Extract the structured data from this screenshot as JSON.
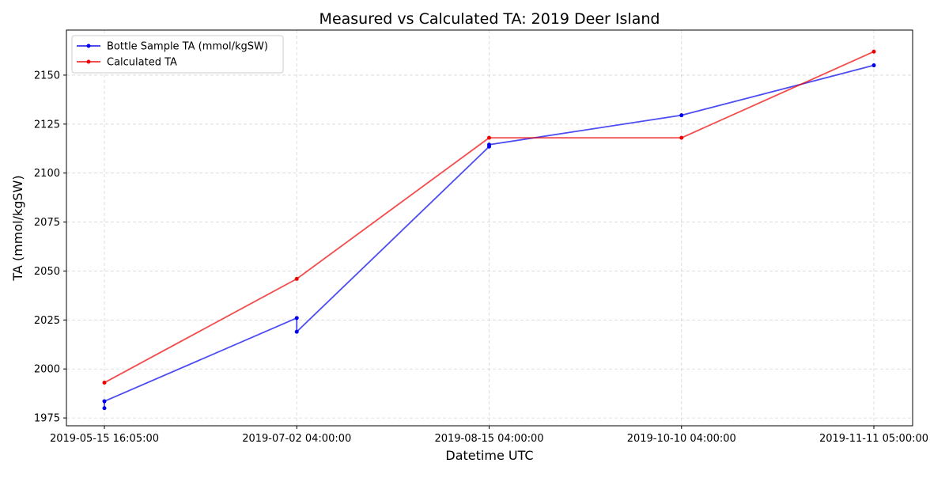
{
  "chart_data": {
    "type": "line",
    "title": "Measured vs Calculated TA: 2019 Deer Island",
    "xlabel": "Datetime UTC",
    "ylabel": "TA (mmol/kgSW)",
    "categories": [
      "2019-05-15 16:05:00",
      "2019-07-02 04:00:00",
      "2019-08-15 04:00:00",
      "2019-10-10 04:00:00",
      "2019-11-11 05:00:00"
    ],
    "ylim": [
      1971,
      2173
    ],
    "yticks": [
      1975,
      2000,
      2025,
      2050,
      2075,
      2100,
      2125,
      2150
    ],
    "grid": true,
    "legend_position": "top-left",
    "series": [
      {
        "name": "Bottle Sample TA (mmol/kgSW)",
        "color": "#0000ee",
        "points": [
          {
            "x": 0,
            "y": 1980
          },
          {
            "x": 0,
            "y": 1983.5
          },
          {
            "x": 1,
            "y": 2026
          },
          {
            "x": 1,
            "y": 2019
          },
          {
            "x": 2,
            "y": 2113.5
          },
          {
            "x": 2,
            "y": 2114.5
          },
          {
            "x": 3,
            "y": 2129.5
          },
          {
            "x": 4,
            "y": 2155
          }
        ]
      },
      {
        "name": "Calculated TA",
        "color": "#ee0000",
        "points": [
          {
            "x": 0,
            "y": 1993
          },
          {
            "x": 1,
            "y": 2046
          },
          {
            "x": 2,
            "y": 2118
          },
          {
            "x": 3,
            "y": 2118
          },
          {
            "x": 4,
            "y": 2162
          }
        ]
      }
    ]
  }
}
